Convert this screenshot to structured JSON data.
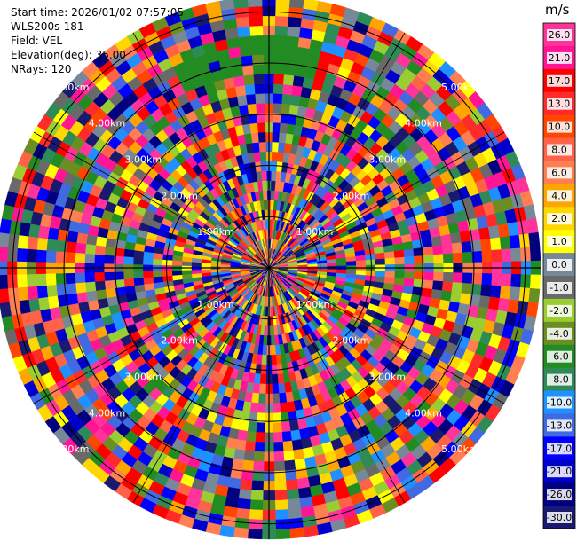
{
  "info": {
    "start_time": "Start time: 2026/01/02 07:57:05",
    "instrument": "WLS200s-181",
    "field": "Field: VEL",
    "elevation": "Elevation(deg): 35.00",
    "nrays": "NRays: 120"
  },
  "chart_data": {
    "type": "heatmap",
    "projection": "polar PPI",
    "n_rays": 120,
    "range_rings": [
      "1.00km",
      "2.00km",
      "3.00km",
      "4.00km",
      "5.00km"
    ],
    "range_ring_values_km": [
      1,
      2,
      3,
      4,
      5
    ],
    "max_range_km": 5.3,
    "crosshair": true,
    "colorbar": {
      "unit": "m/s",
      "ticks": [
        "26.0",
        "21.0",
        "17.0",
        "13.0",
        "10.0",
        "8.0",
        "6.0",
        "4.0",
        "2.0",
        "1.0",
        "0.0",
        "-1.0",
        "-2.0",
        "-4.0",
        "-6.0",
        "-8.0",
        "-10.0",
        "-13.0",
        "-17.0",
        "-21.0",
        "-26.0",
        "-30.0"
      ],
      "colors": [
        "#ff3399",
        "#ff1493",
        "#ff0000",
        "#ff2a2a",
        "#ff4500",
        "#ff6347",
        "#ff7f50",
        "#ffa500",
        "#ffd700",
        "#ffff00",
        "#778899",
        "#696969",
        "#9acd32",
        "#6b8e23",
        "#228b22",
        "#2e8b57",
        "#1e90ff",
        "#4169e1",
        "#0000ff",
        "#0000cd",
        "#000080",
        "#191970"
      ]
    },
    "field": "VEL",
    "elevation_deg": 35.0
  }
}
